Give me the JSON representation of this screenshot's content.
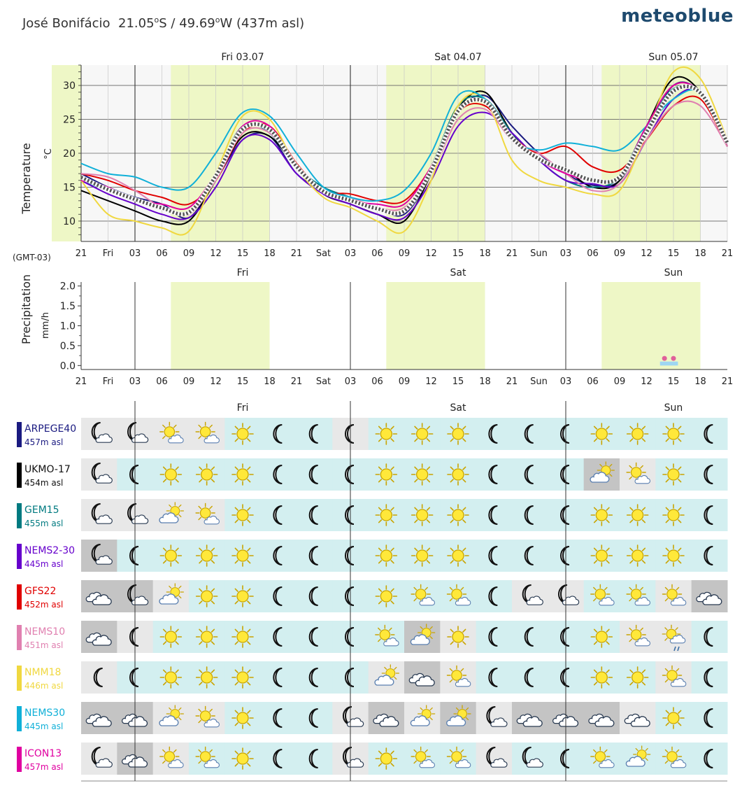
{
  "header": {
    "location": "José Bonifácio",
    "lat_value": "21.05",
    "lat_hemi": "S",
    "lon_value": "49.69",
    "lon_hemi": "W",
    "elevation": "(437m asl)",
    "brand": "meteoblue"
  },
  "timezone_label": "(GMT-03)",
  "x_ticks": [
    "21",
    "Fri",
    "03",
    "06",
    "09",
    "12",
    "15",
    "18",
    "21",
    "Sat",
    "03",
    "06",
    "09",
    "12",
    "15",
    "18",
    "21",
    "Sun",
    "03",
    "06",
    "09",
    "12",
    "15",
    "18",
    "21"
  ],
  "colors": {
    "daylight": "#eef7c6",
    "ensemble_mean": "#555555",
    "cell_clear": "#d3eff0",
    "cell_partly": "#e8e8e8",
    "cell_cloudy": "#c4c4c4",
    "cell_overcast": "#a8a8a8",
    "precip_bar": "#9fd6f2",
    "precip_dot": "#e0609a"
  },
  "chart_data": [
    {
      "type": "line",
      "ylabel": "Temperature",
      "yunit": "°C",
      "day_labels": [
        "Fri 03.07",
        "Sat 04.07",
        "Sun 05.07"
      ],
      "yticks": [
        10,
        15,
        20,
        25,
        30
      ],
      "ylim": [
        7,
        33
      ],
      "x_hours": [
        0,
        3,
        6,
        9,
        12,
        15,
        18,
        21,
        24,
        27,
        30,
        33,
        36,
        39,
        42,
        45,
        48,
        51,
        54,
        57,
        60,
        63,
        66,
        69,
        72
      ],
      "daylight_hours": [
        [
          10,
          21
        ],
        [
          34,
          45
        ],
        [
          58,
          69
        ]
      ],
      "series": [
        {
          "name": "ARPEGE40",
          "color": "#1a1a80",
          "values": [
            17,
            15,
            13.5,
            12.5,
            10.5,
            16,
            22,
            22.5,
            17,
            14.5,
            13,
            12,
            11,
            17,
            26,
            28.5,
            24,
            20,
            17,
            15.3,
            16,
            23,
            30,
            29,
            22
          ]
        },
        {
          "name": "UKMO-17",
          "color": "#000000",
          "values": [
            14.5,
            13,
            11.5,
            10,
            10,
            16,
            22.5,
            22.5,
            18,
            14,
            12.5,
            11,
            10,
            17,
            26.5,
            29,
            23,
            19,
            17.5,
            15,
            16,
            24,
            31,
            29,
            21
          ]
        },
        {
          "name": "GEM15",
          "color": "#007a80",
          "values": [
            16,
            14.5,
            13,
            12,
            11.5,
            17,
            24,
            23,
            18,
            15,
            13.5,
            12,
            11.5,
            18,
            27,
            28,
            23,
            19,
            16,
            15,
            16.5,
            24,
            29.5,
            29,
            22
          ]
        },
        {
          "name": "NEMS2-30",
          "color": "#6600cc",
          "values": [
            16,
            14,
            12.5,
            11,
            10.5,
            15,
            22,
            22,
            17,
            14,
            12.5,
            11,
            10.5,
            16,
            24,
            26,
            23,
            19,
            16,
            15.5,
            15.5,
            22,
            28,
            29,
            21
          ]
        },
        {
          "name": "GFS22",
          "color": "#e00000",
          "values": [
            17,
            16,
            14.5,
            13.5,
            12.5,
            16,
            23,
            24,
            18.5,
            14.5,
            14,
            13,
            13,
            18,
            26,
            27,
            22.5,
            20,
            21,
            18,
            17.5,
            22,
            27,
            28,
            21
          ]
        },
        {
          "name": "NEMS10",
          "color": "#e080b0",
          "values": [
            17,
            16.5,
            14.5,
            12,
            11,
            16,
            23,
            23,
            18,
            14.5,
            13.5,
            12,
            12,
            17,
            25,
            26.5,
            22,
            20,
            17,
            14.5,
            15.5,
            22,
            27,
            27,
            21
          ]
        },
        {
          "name": "NMM18",
          "color": "#f0d840",
          "values": [
            16,
            11,
            10,
            9,
            8.5,
            17,
            25.5,
            25,
            18,
            13.5,
            12,
            10,
            8.5,
            16,
            27,
            28,
            19,
            16,
            15,
            14,
            14.5,
            23,
            32,
            31,
            22
          ]
        },
        {
          "name": "NEMS30",
          "color": "#10b0d8",
          "values": [
            18.5,
            17,
            16.5,
            15,
            15,
            20,
            26,
            25.5,
            20,
            15,
            13.5,
            13,
            14.5,
            20,
            28.5,
            28,
            22,
            20.5,
            21.5,
            21,
            20.5,
            24,
            28,
            29,
            22
          ]
        },
        {
          "name": "ICON13",
          "color": "#e000a0",
          "values": [
            16,
            15,
            13,
            12.5,
            12,
            17,
            24,
            24,
            18,
            14.5,
            13,
            12.5,
            12.5,
            18,
            26,
            27.5,
            22,
            19,
            17,
            16,
            16.5,
            24,
            30,
            29,
            22
          ]
        }
      ]
    },
    {
      "type": "bar",
      "ylabel": "Precipitation",
      "yunit": "mm/h",
      "day_labels": [
        "Fri",
        "Sat",
        "Sun"
      ],
      "ytick_labels": [
        "0.0",
        "0.5",
        "1.0",
        "1.5",
        "2.0"
      ],
      "yticks": [
        0,
        0.5,
        1,
        1.5,
        2
      ],
      "ylim": [
        -0.1,
        2.1
      ],
      "daylight_hours": [
        [
          10,
          21
        ],
        [
          34,
          45
        ],
        [
          58,
          69
        ]
      ],
      "bars": [
        {
          "start_hour": 64.5,
          "end_hour": 66.5,
          "value": 0.1
        }
      ],
      "dots": [
        65,
        66
      ]
    },
    {
      "type": "table",
      "day_labels": [
        "Fri",
        "Sat",
        "Sun"
      ],
      "column_hours": [
        0,
        4,
        8,
        12,
        16,
        20,
        24,
        28,
        32,
        36,
        40,
        44,
        48,
        52,
        56,
        60,
        64,
        68,
        72
      ],
      "rows": [
        {
          "name": "ARPEGE40",
          "elevation": "457m asl",
          "color": "#1a1a80",
          "icons": [
            "moon-cloud",
            "moon-cloud",
            "sun-cloud",
            "sun-cloud",
            "sun",
            "moon",
            "moon",
            "moon",
            "sun",
            "sun",
            "sun",
            "moon",
            "moon",
            "moon",
            "sun",
            "sun",
            "sun",
            "moon"
          ],
          "cover": [
            "p",
            "p",
            "p",
            "p",
            "c",
            "c",
            "c",
            "p",
            "c",
            "c",
            "c",
            "c",
            "c",
            "c",
            "c",
            "c",
            "c",
            "c"
          ]
        },
        {
          "name": "UKMO-17",
          "elevation": "454m asl",
          "color": "#000000",
          "icons": [
            "moon-cloud",
            "moon",
            "sun",
            "sun",
            "sun",
            "moon",
            "moon",
            "moon",
            "sun",
            "sun",
            "sun",
            "moon",
            "moon",
            "moon",
            "cloud-sun",
            "sun-cloud",
            "sun",
            "moon"
          ],
          "cover": [
            "p",
            "c",
            "c",
            "c",
            "c",
            "c",
            "c",
            "c",
            "c",
            "c",
            "c",
            "c",
            "c",
            "c",
            "o",
            "p",
            "c",
            "c"
          ]
        },
        {
          "name": "GEM15",
          "elevation": "455m asl",
          "color": "#007a80",
          "icons": [
            "moon-cloud",
            "moon-cloud",
            "cloud-sun",
            "sun-cloud",
            "sun",
            "moon",
            "moon",
            "moon",
            "sun",
            "sun",
            "sun",
            "moon",
            "moon",
            "moon",
            "sun",
            "sun",
            "sun",
            "moon"
          ],
          "cover": [
            "p",
            "p",
            "p",
            "p",
            "c",
            "c",
            "c",
            "c",
            "c",
            "c",
            "c",
            "c",
            "c",
            "c",
            "c",
            "c",
            "c",
            "c"
          ]
        },
        {
          "name": "NEMS2-30",
          "elevation": "445m asl",
          "color": "#6600cc",
          "icons": [
            "moon-cloud",
            "moon",
            "sun",
            "sun",
            "sun",
            "moon",
            "moon",
            "moon",
            "sun",
            "sun",
            "sun",
            "moon",
            "moon",
            "moon",
            "sun",
            "sun",
            "sun",
            "moon"
          ],
          "cover": [
            "o",
            "c",
            "c",
            "c",
            "c",
            "c",
            "c",
            "c",
            "c",
            "c",
            "c",
            "c",
            "c",
            "c",
            "c",
            "c",
            "c",
            "c"
          ]
        },
        {
          "name": "GFS22",
          "elevation": "452m asl",
          "color": "#e00000",
          "icons": [
            "clouds",
            "moon-cloud",
            "cloud-sun",
            "sun",
            "sun",
            "moon",
            "moon",
            "moon",
            "sun",
            "sun-cloud",
            "sun-cloud",
            "moon",
            "moon-cloud",
            "moon-cloud",
            "sun-cloud",
            "sun-cloud",
            "sun-cloud",
            "clouds"
          ],
          "cover": [
            "o",
            "o",
            "p",
            "c",
            "c",
            "c",
            "c",
            "c",
            "c",
            "c",
            "c",
            "c",
            "p",
            "p",
            "c",
            "c",
            "p",
            "o"
          ]
        },
        {
          "name": "NEMS10",
          "elevation": "451m asl",
          "color": "#e080b0",
          "icons": [
            "clouds",
            "moon",
            "sun",
            "sun",
            "sun",
            "moon",
            "moon",
            "moon",
            "sun-cloud",
            "cloud-sun",
            "sun",
            "moon",
            "moon",
            "moon",
            "sun",
            "sun-cloud",
            "sun-rain",
            "moon"
          ],
          "cover": [
            "o",
            "p",
            "c",
            "c",
            "c",
            "c",
            "c",
            "c",
            "c",
            "o",
            "p",
            "c",
            "c",
            "c",
            "c",
            "p",
            "p",
            "c"
          ]
        },
        {
          "name": "NMM18",
          "elevation": "446m asl",
          "color": "#f0d840",
          "icons": [
            "moon",
            "moon",
            "sun",
            "sun",
            "sun",
            "moon",
            "moon",
            "moon",
            "cloud-sun",
            "clouds",
            "sun-cloud",
            "moon",
            "moon",
            "moon",
            "sun",
            "sun",
            "sun-cloud",
            "moon"
          ],
          "cover": [
            "p",
            "c",
            "c",
            "c",
            "c",
            "c",
            "c",
            "c",
            "p",
            "o",
            "p",
            "c",
            "c",
            "c",
            "c",
            "c",
            "p",
            "c"
          ]
        },
        {
          "name": "NEMS30",
          "elevation": "445m asl",
          "color": "#10b0d8",
          "icons": [
            "clouds",
            "clouds",
            "cloud-sun",
            "sun-cloud",
            "sun",
            "moon",
            "moon",
            "moon-cloud",
            "clouds",
            "cloud-sun",
            "cloud-sun",
            "moon-cloud",
            "clouds",
            "clouds",
            "clouds",
            "clouds",
            "sun",
            "moon"
          ],
          "cover": [
            "o",
            "o",
            "p",
            "p",
            "c",
            "c",
            "c",
            "p",
            "o",
            "p",
            "o",
            "p",
            "o",
            "o",
            "o",
            "p",
            "c",
            "c"
          ]
        },
        {
          "name": "ICON13",
          "elevation": "457m asl",
          "color": "#e000a0",
          "icons": [
            "moon-cloud",
            "clouds",
            "sun-cloud",
            "sun-cloud",
            "sun",
            "moon",
            "moon",
            "moon-cloud",
            "sun",
            "sun-cloud",
            "sun-cloud",
            "moon-cloud",
            "moon-cloud",
            "moon",
            "sun-cloud",
            "cloud-sun",
            "sun-cloud",
            "moon"
          ],
          "cover": [
            "p",
            "o",
            "p",
            "c",
            "c",
            "c",
            "c",
            "p",
            "c",
            "c",
            "c",
            "p",
            "c",
            "c",
            "c",
            "c",
            "c",
            "c"
          ]
        }
      ]
    }
  ]
}
